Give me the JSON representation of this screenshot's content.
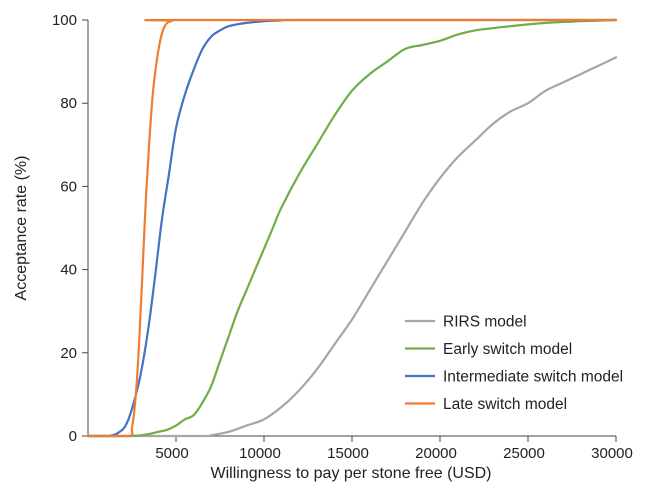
{
  "chart_data": {
    "type": "line",
    "xlabel": "Willingness to pay per stone free (USD)",
    "ylabel": "Acceptance rate (%)",
    "xlim": [
      0,
      30000
    ],
    "ylim": [
      0,
      100
    ],
    "xticks": [
      5000,
      10000,
      15000,
      20000,
      25000,
      30000
    ],
    "yticks": [
      0,
      20,
      40,
      60,
      80,
      100
    ],
    "grid": false,
    "legend_position": "bottom-right",
    "series": [
      {
        "name": "RIRS model",
        "color": "#a6a6a6",
        "x": [
          0,
          6500,
          7000,
          8000,
          9000,
          10000,
          11000,
          12000,
          13000,
          14000,
          15000,
          16000,
          17000,
          18000,
          19000,
          20000,
          21000,
          22000,
          23000,
          24000,
          25000,
          26000,
          27000,
          28000,
          29000,
          30000
        ],
        "y": [
          0,
          0,
          0.2,
          1,
          2.5,
          4,
          7,
          11,
          16,
          22,
          28,
          35,
          42,
          49,
          56,
          62,
          67,
          71,
          75,
          78,
          80,
          83,
          85,
          87,
          89,
          91
        ]
      },
      {
        "name": "Early switch model",
        "color": "#70ad47",
        "x": [
          0,
          2500,
          3500,
          4000,
          4500,
          5000,
          5500,
          6000,
          6500,
          7000,
          7500,
          8000,
          8500,
          9000,
          9500,
          10000,
          10500,
          11000,
          12000,
          13000,
          14000,
          15000,
          16000,
          17000,
          18000,
          19000,
          20000,
          21000,
          22000,
          24000,
          26000,
          28000,
          30000
        ],
        "y": [
          0,
          0,
          0.5,
          1,
          1.5,
          2.5,
          4,
          5,
          8,
          12,
          18,
          24,
          30,
          35,
          40,
          45,
          50,
          55,
          63,
          70,
          77,
          83,
          87,
          90,
          93,
          94,
          95,
          96.5,
          97.5,
          98.5,
          99.3,
          99.7,
          100
        ]
      },
      {
        "name": "Intermediate switch model",
        "color": "#4472c4",
        "x": [
          0,
          1200,
          1800,
          2200,
          2600,
          3000,
          3400,
          3800,
          4200,
          4600,
          5000,
          5500,
          6000,
          6500,
          7000,
          7500,
          8000,
          9000,
          10000,
          11000,
          12000,
          30000
        ],
        "y": [
          0,
          0,
          1,
          3,
          8,
          15,
          25,
          38,
          52,
          63,
          74,
          82,
          88,
          93,
          96,
          97.5,
          98.5,
          99.3,
          99.7,
          99.9,
          100,
          100
        ]
      },
      {
        "name": "Late switch model",
        "color": "#ed7d31",
        "x": [
          0,
          2300,
          2500,
          2700,
          2900,
          3100,
          3300,
          3500,
          3700,
          3900,
          4100,
          4300,
          4500,
          4800,
          5200,
          30000
        ],
        "y": [
          0,
          0,
          2,
          9,
          22,
          40,
          58,
          72,
          83,
          90,
          95,
          98,
          99.3,
          99.8,
          100,
          100
        ]
      }
    ]
  }
}
